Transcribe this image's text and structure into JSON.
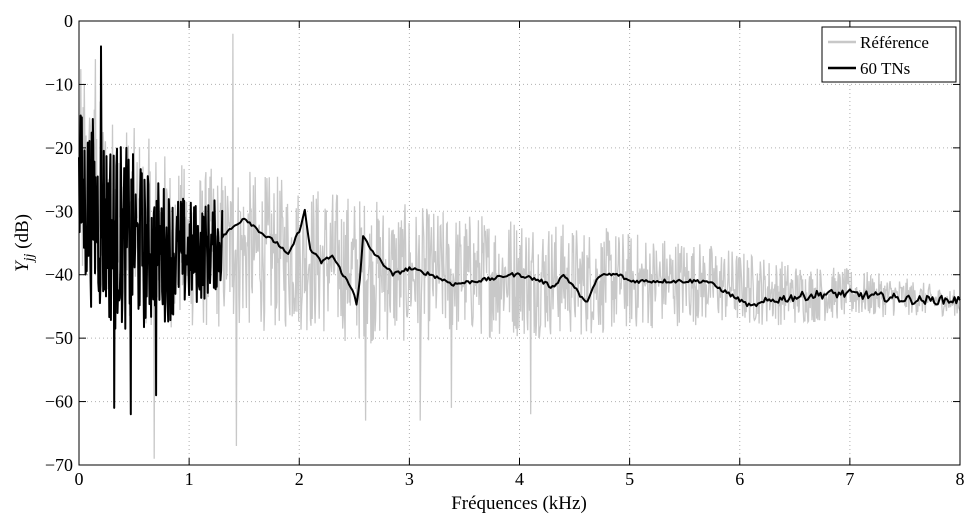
{
  "chart_data": {
    "type": "line",
    "title": "",
    "xlabel": "Fréquences (kHz)",
    "ylabel_main": "Y",
    "ylabel_sub": "jj",
    "ylabel_unit": " (dB)",
    "xlim": [
      0,
      8
    ],
    "ylim": [
      -70,
      0
    ],
    "xticks": [
      "0",
      "1",
      "2",
      "3",
      "4",
      "5",
      "6",
      "7",
      "8"
    ],
    "yticks": [
      "0",
      "−10",
      "−20",
      "−30",
      "−40",
      "−50",
      "−60",
      "−70"
    ],
    "grid": true,
    "legend_position": "top-right",
    "series": [
      {
        "name": "Référence",
        "color": "#c8c8c8",
        "style": "noisy",
        "envelope": [
          [
            0,
            -27,
            20
          ],
          [
            0.3,
            -30,
            16
          ],
          [
            0.6,
            -33,
            15
          ],
          [
            1.0,
            -36,
            13
          ],
          [
            1.4,
            -36,
            13
          ],
          [
            2.0,
            -37,
            12
          ],
          [
            2.5,
            -39,
            12
          ],
          [
            3.0,
            -40,
            11
          ],
          [
            3.5,
            -40,
            10
          ],
          [
            4.0,
            -40,
            10
          ],
          [
            4.5,
            -41,
            9
          ],
          [
            5.0,
            -41,
            8
          ],
          [
            5.5,
            -41,
            7
          ],
          [
            6.0,
            -42,
            6
          ],
          [
            6.5,
            -43,
            5
          ],
          [
            7.0,
            -43,
            4
          ],
          [
            7.5,
            -43.5,
            3
          ],
          [
            8.0,
            -44.5,
            2
          ]
        ],
        "peaks": [
          [
            0.05,
            -10
          ],
          [
            0.15,
            -6
          ],
          [
            1.4,
            -2
          ],
          [
            0.68,
            -69
          ],
          [
            1.43,
            -67
          ],
          [
            2.6,
            -63
          ],
          [
            3.1,
            -63
          ],
          [
            3.38,
            -61
          ],
          [
            4.1,
            -62
          ]
        ]
      },
      {
        "name": "60 TNs",
        "color": "#000000",
        "style": "noisy-then-smooth",
        "noisy_range": [
          0,
          1.3
        ],
        "envelope": [
          [
            0,
            -28,
            15
          ],
          [
            0.3,
            -33,
            16
          ],
          [
            0.6,
            -36,
            13
          ],
          [
            1.0,
            -37,
            9
          ],
          [
            1.3,
            -35,
            7
          ]
        ],
        "peaks": [
          [
            0.2,
            -4
          ],
          [
            0.47,
            -62
          ],
          [
            0.32,
            -61
          ],
          [
            0.7,
            -59
          ]
        ],
        "smooth_points": [
          [
            1.3,
            -34
          ],
          [
            1.5,
            -31
          ],
          [
            1.7,
            -34
          ],
          [
            1.8,
            -35
          ],
          [
            1.9,
            -37
          ],
          [
            2.0,
            -33
          ],
          [
            2.05,
            -30
          ],
          [
            2.1,
            -36
          ],
          [
            2.2,
            -38
          ],
          [
            2.3,
            -37
          ],
          [
            2.4,
            -40
          ],
          [
            2.5,
            -43
          ],
          [
            2.52,
            -44.5
          ],
          [
            2.55,
            -41
          ],
          [
            2.58,
            -34
          ],
          [
            2.65,
            -36
          ],
          [
            2.75,
            -38
          ],
          [
            2.85,
            -40
          ],
          [
            3.0,
            -39
          ],
          [
            3.2,
            -40
          ],
          [
            3.4,
            -41.5
          ],
          [
            3.6,
            -41
          ],
          [
            3.8,
            -40.5
          ],
          [
            3.9,
            -40
          ],
          [
            4.0,
            -40
          ],
          [
            4.2,
            -41
          ],
          [
            4.3,
            -42
          ],
          [
            4.4,
            -40
          ],
          [
            4.5,
            -42
          ],
          [
            4.6,
            -44.5
          ],
          [
            4.7,
            -41
          ],
          [
            4.75,
            -40
          ],
          [
            4.9,
            -40
          ],
          [
            5.0,
            -41
          ],
          [
            5.2,
            -41
          ],
          [
            5.5,
            -41
          ],
          [
            5.7,
            -41
          ],
          [
            5.8,
            -42
          ],
          [
            6.0,
            -44
          ],
          [
            6.1,
            -45
          ],
          [
            6.3,
            -44
          ],
          [
            6.5,
            -43.5
          ],
          [
            6.8,
            -43
          ],
          [
            7.0,
            -43
          ],
          [
            7.3,
            -43.5
          ],
          [
            7.6,
            -44
          ],
          [
            8.0,
            -44
          ]
        ]
      }
    ]
  }
}
